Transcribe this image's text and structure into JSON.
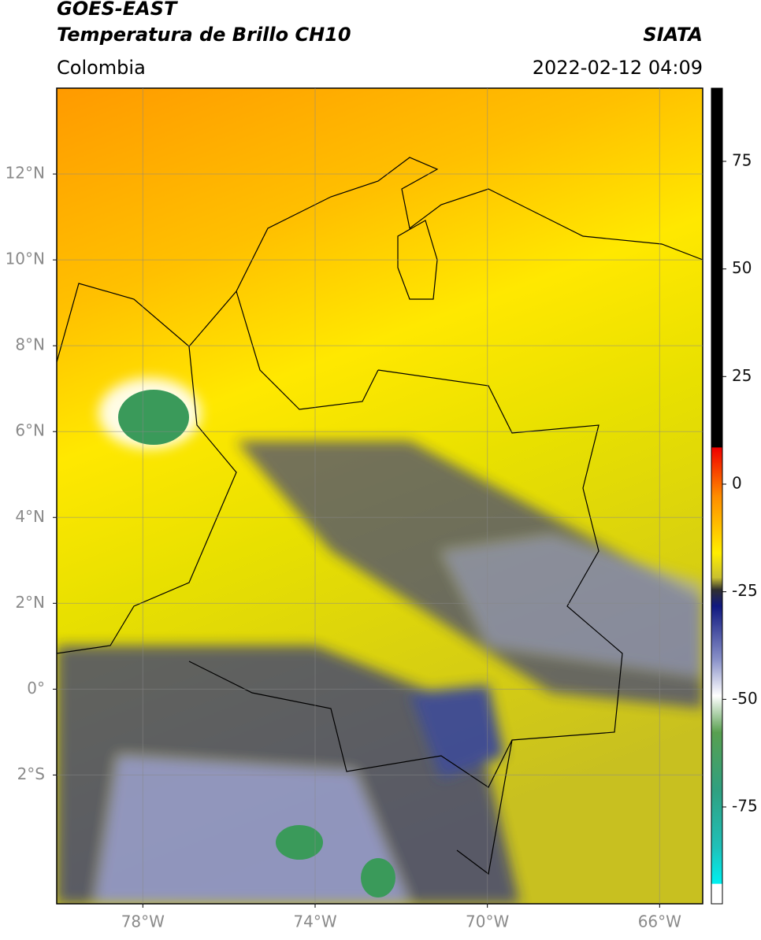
{
  "header": {
    "title": "GOES-EAST",
    "subtitle": "Temperatura de Brillo CH10",
    "source": "SIATA",
    "region": "Colombia",
    "datetime": "2022-02-12 04:09"
  },
  "map": {
    "lonlim": [
      -80,
      -65
    ],
    "latlim": [
      -5,
      14
    ],
    "grid": true,
    "lonticks": [
      {
        "value": -78,
        "label": "78°W"
      },
      {
        "value": -74,
        "label": "74°W"
      },
      {
        "value": -70,
        "label": "70°W"
      },
      {
        "value": -66,
        "label": "66°W"
      }
    ],
    "latticks": [
      {
        "value": 12,
        "label": "12°N"
      },
      {
        "value": 10,
        "label": "10°N"
      },
      {
        "value": 8,
        "label": "8°N"
      },
      {
        "value": 6,
        "label": "6°N"
      },
      {
        "value": 4,
        "label": "4°N"
      },
      {
        "value": 2,
        "label": "2°N"
      },
      {
        "value": 0,
        "label": "0°"
      },
      {
        "value": -2,
        "label": "2°S"
      }
    ]
  },
  "colorbar": {
    "ylim": [
      -97.5,
      92
    ],
    "ticks": [
      75,
      50,
      25,
      0,
      -25,
      -50,
      -75
    ]
  }
}
